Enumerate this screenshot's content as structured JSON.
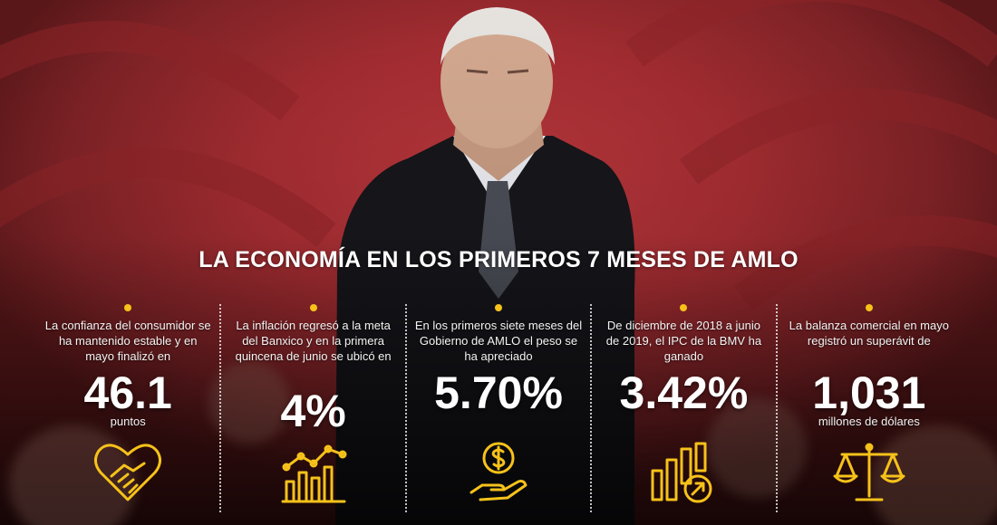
{
  "title": "LA ECONOMÍA EN LOS PRIMEROS 7 MESES DE AMLO",
  "accent_color": "#f6c21a",
  "columns": [
    {
      "description": "La confianza del consumidor se ha mantenido estable y en mayo finalizó en",
      "value": "46.1",
      "unit": "puntos",
      "icon": "handshake-heart-icon"
    },
    {
      "description": "La inflación regresó a la meta del Banxico y en la primera quincena de junio se ubicó en",
      "value": "4%",
      "unit": "",
      "icon": "line-bar-chart-icon"
    },
    {
      "description": "En los primeros siete meses del Gobierno de AMLO el peso se ha apreciado",
      "value": "5.70%",
      "unit": "",
      "icon": "dollar-hand-icon"
    },
    {
      "description": "De diciembre de 2018 a junio de 2019, el IPC de la BMV ha ganado",
      "value": "3.42%",
      "unit": "",
      "icon": "growth-bars-icon"
    },
    {
      "description": "La balanza comercial en mayo registró un superávit de",
      "value": "1,031",
      "unit": "millones de dólares",
      "icon": "balance-scale-icon"
    }
  ]
}
